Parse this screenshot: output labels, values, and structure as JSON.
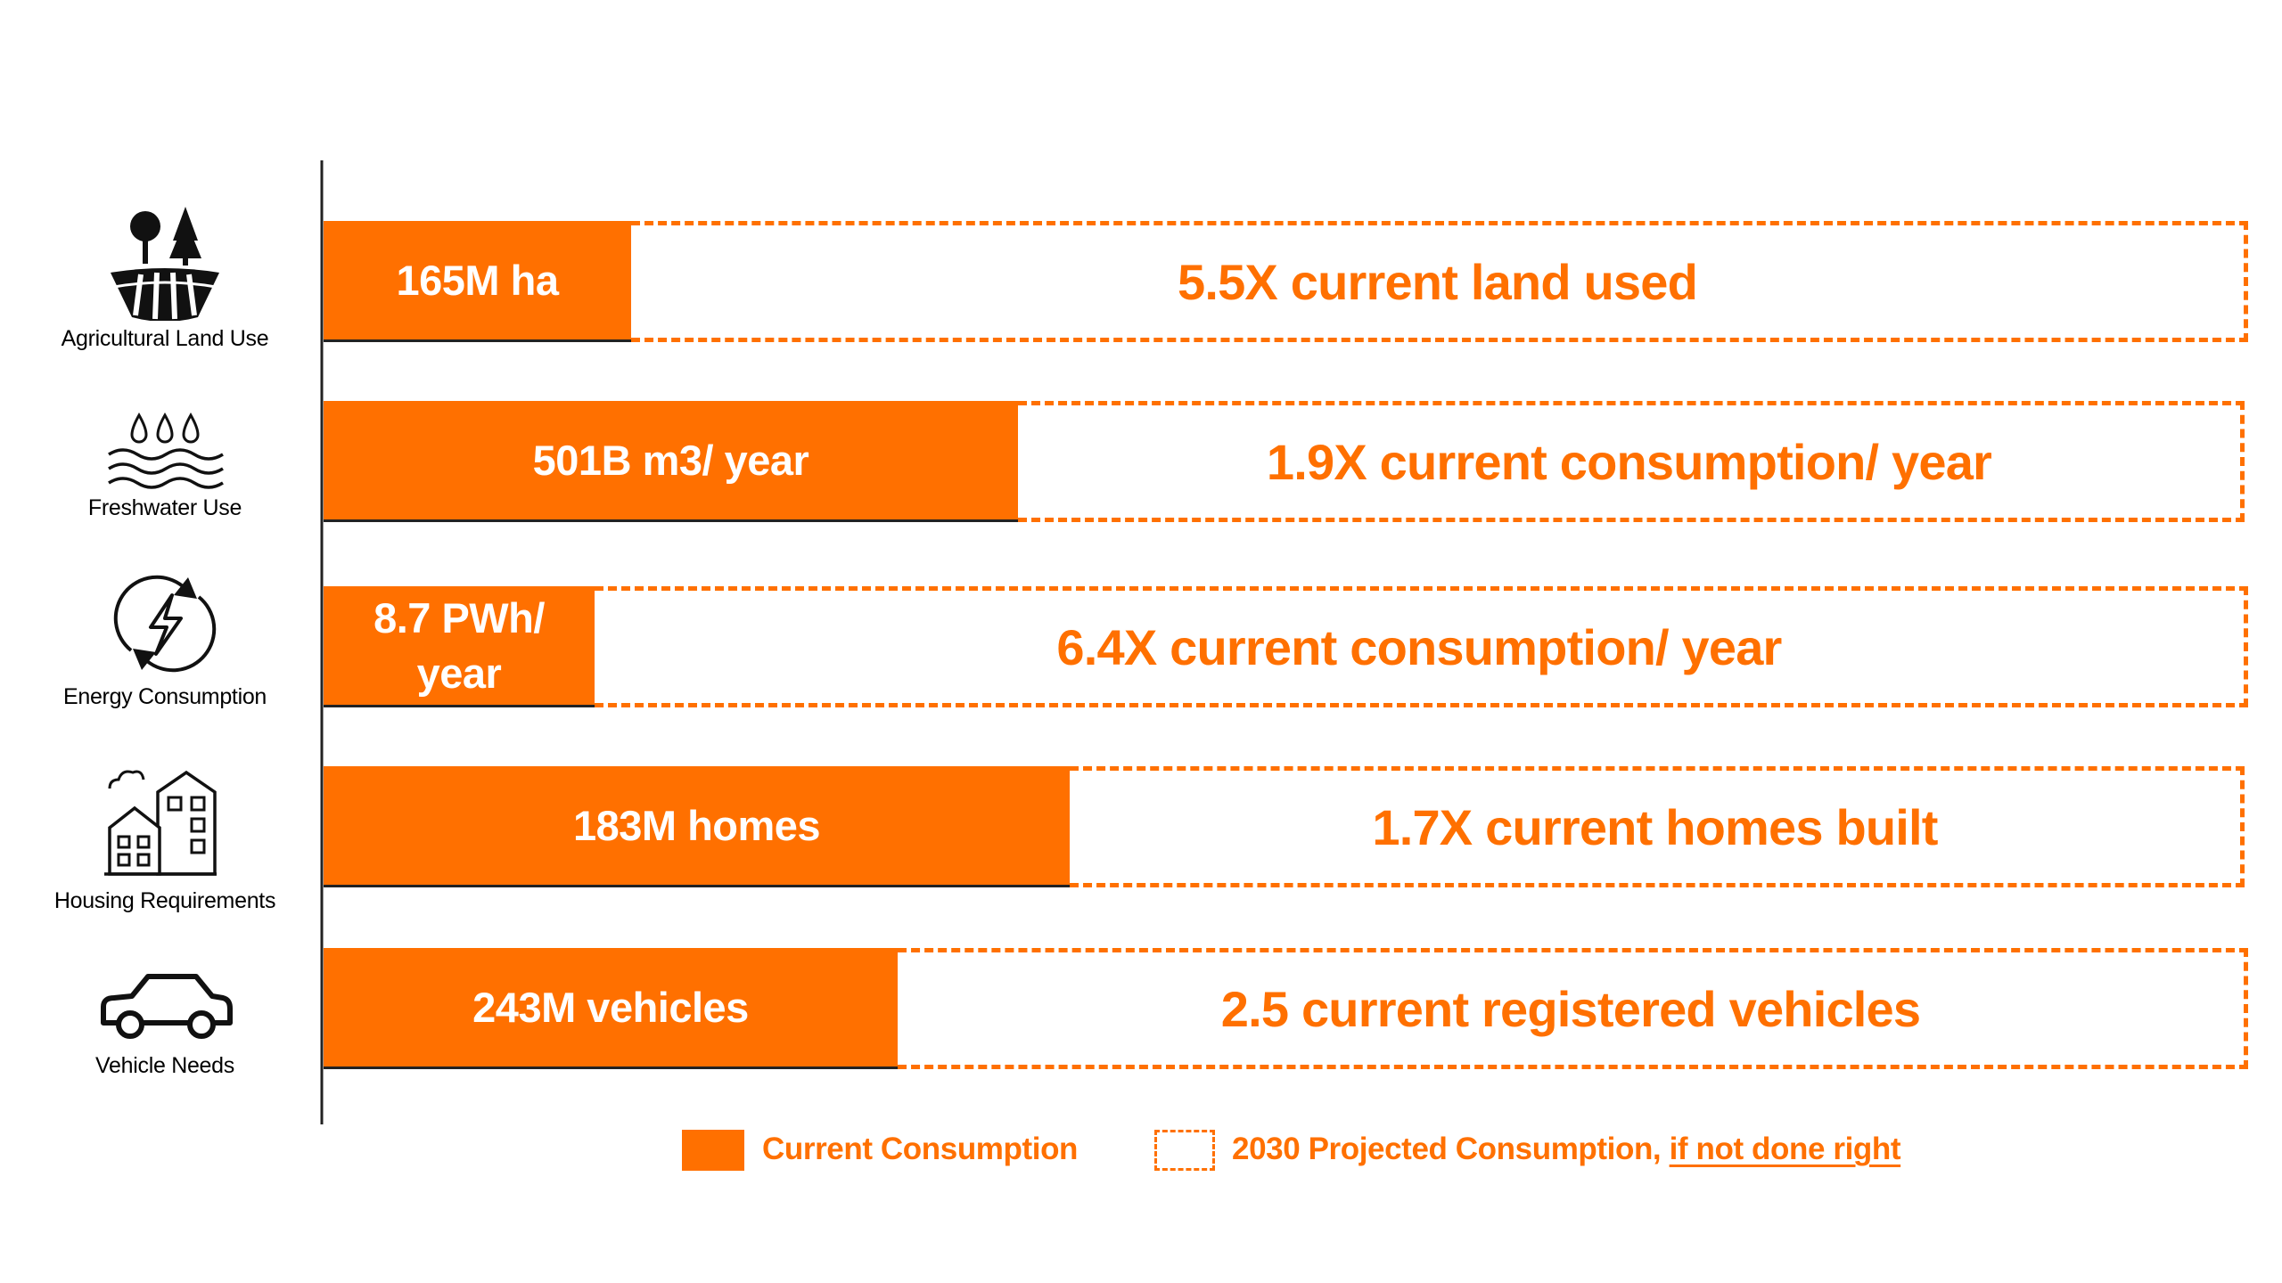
{
  "chart_data": {
    "type": "bar",
    "orientation": "horizontal",
    "categories": [
      "Agricultural Land Use",
      "Freshwater Use",
      "Energy Consumption",
      "Housing Requirements",
      "Vehicle Needs"
    ],
    "series": [
      {
        "name": "Current Consumption",
        "labels": [
          "165M ha",
          "501B m3/ year",
          "8.7 PWh/ year",
          "183M homes",
          "243M vehicles"
        ],
        "values": [
          165,
          501,
          8.7,
          183,
          243
        ]
      },
      {
        "name": "2030 Projected Consumption, if not done right",
        "labels": [
          "5.5X current land used",
          "1.9X current consumption/ year",
          "6.4X current consumption/ year",
          "1.7X current homes built",
          "2.5 current registered vehicles"
        ],
        "multipliers": [
          5.5,
          1.9,
          6.4,
          1.7,
          2.5
        ]
      }
    ],
    "legend_position": "bottom",
    "grid": false
  },
  "icons": [
    "agriculture-icon",
    "freshwater-icon",
    "energy-icon",
    "housing-icon",
    "vehicle-icon"
  ],
  "legend": {
    "current": "Current Consumption",
    "projected_prefix": "2030 Projected Consumption,",
    "projected_emphasis": "if not done right"
  },
  "colors": {
    "accent": "#FF7000",
    "text": "#000000",
    "bar_text": "#FFFFFF"
  }
}
